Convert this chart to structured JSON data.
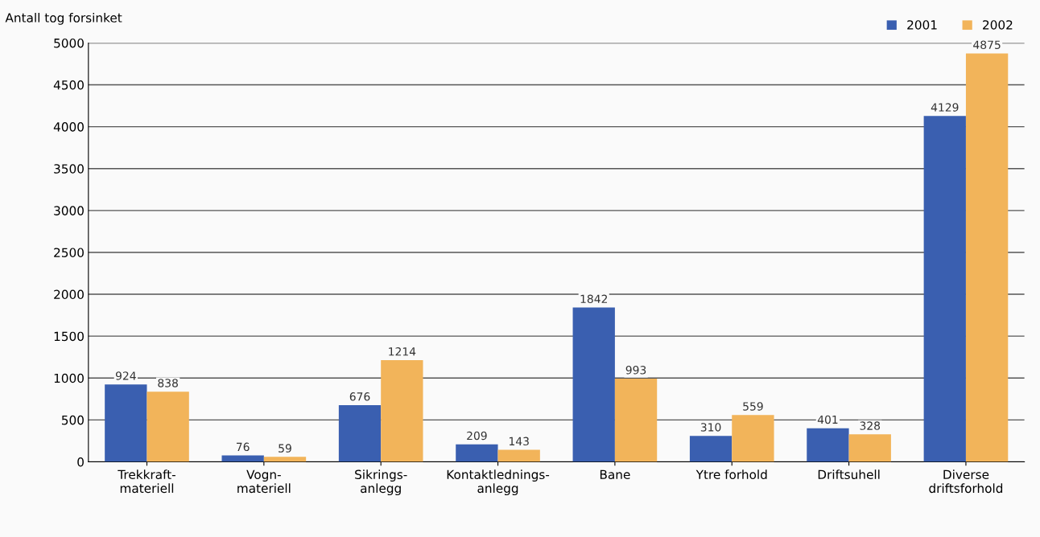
{
  "chart_data": {
    "type": "bar",
    "ylabel": "Antall tog forsinket",
    "categories": [
      "Trekkraft-\nmateriell",
      "Vogn-\nmateriell",
      "Sikrings-\nanlegg",
      "Kontaktlednings-\nanlegg",
      "Bane",
      "Ytre forhold",
      "Driftsuhell",
      "Diverse\ndriftsforhold"
    ],
    "series": [
      {
        "name": "2001",
        "color": "#3a5fb0",
        "values": [
          924,
          76,
          676,
          209,
          1842,
          310,
          401,
          4129
        ]
      },
      {
        "name": "2002",
        "color": "#f2b45a",
        "values": [
          838,
          59,
          1214,
          143,
          993,
          559,
          328,
          4875
        ]
      }
    ],
    "ylim": [
      0,
      5000
    ],
    "yticks": [
      0,
      500,
      1000,
      1500,
      2000,
      2500,
      3000,
      3500,
      4000,
      4500,
      5000
    ],
    "grid": "y",
    "legend": "top right",
    "data_labels": true
  }
}
